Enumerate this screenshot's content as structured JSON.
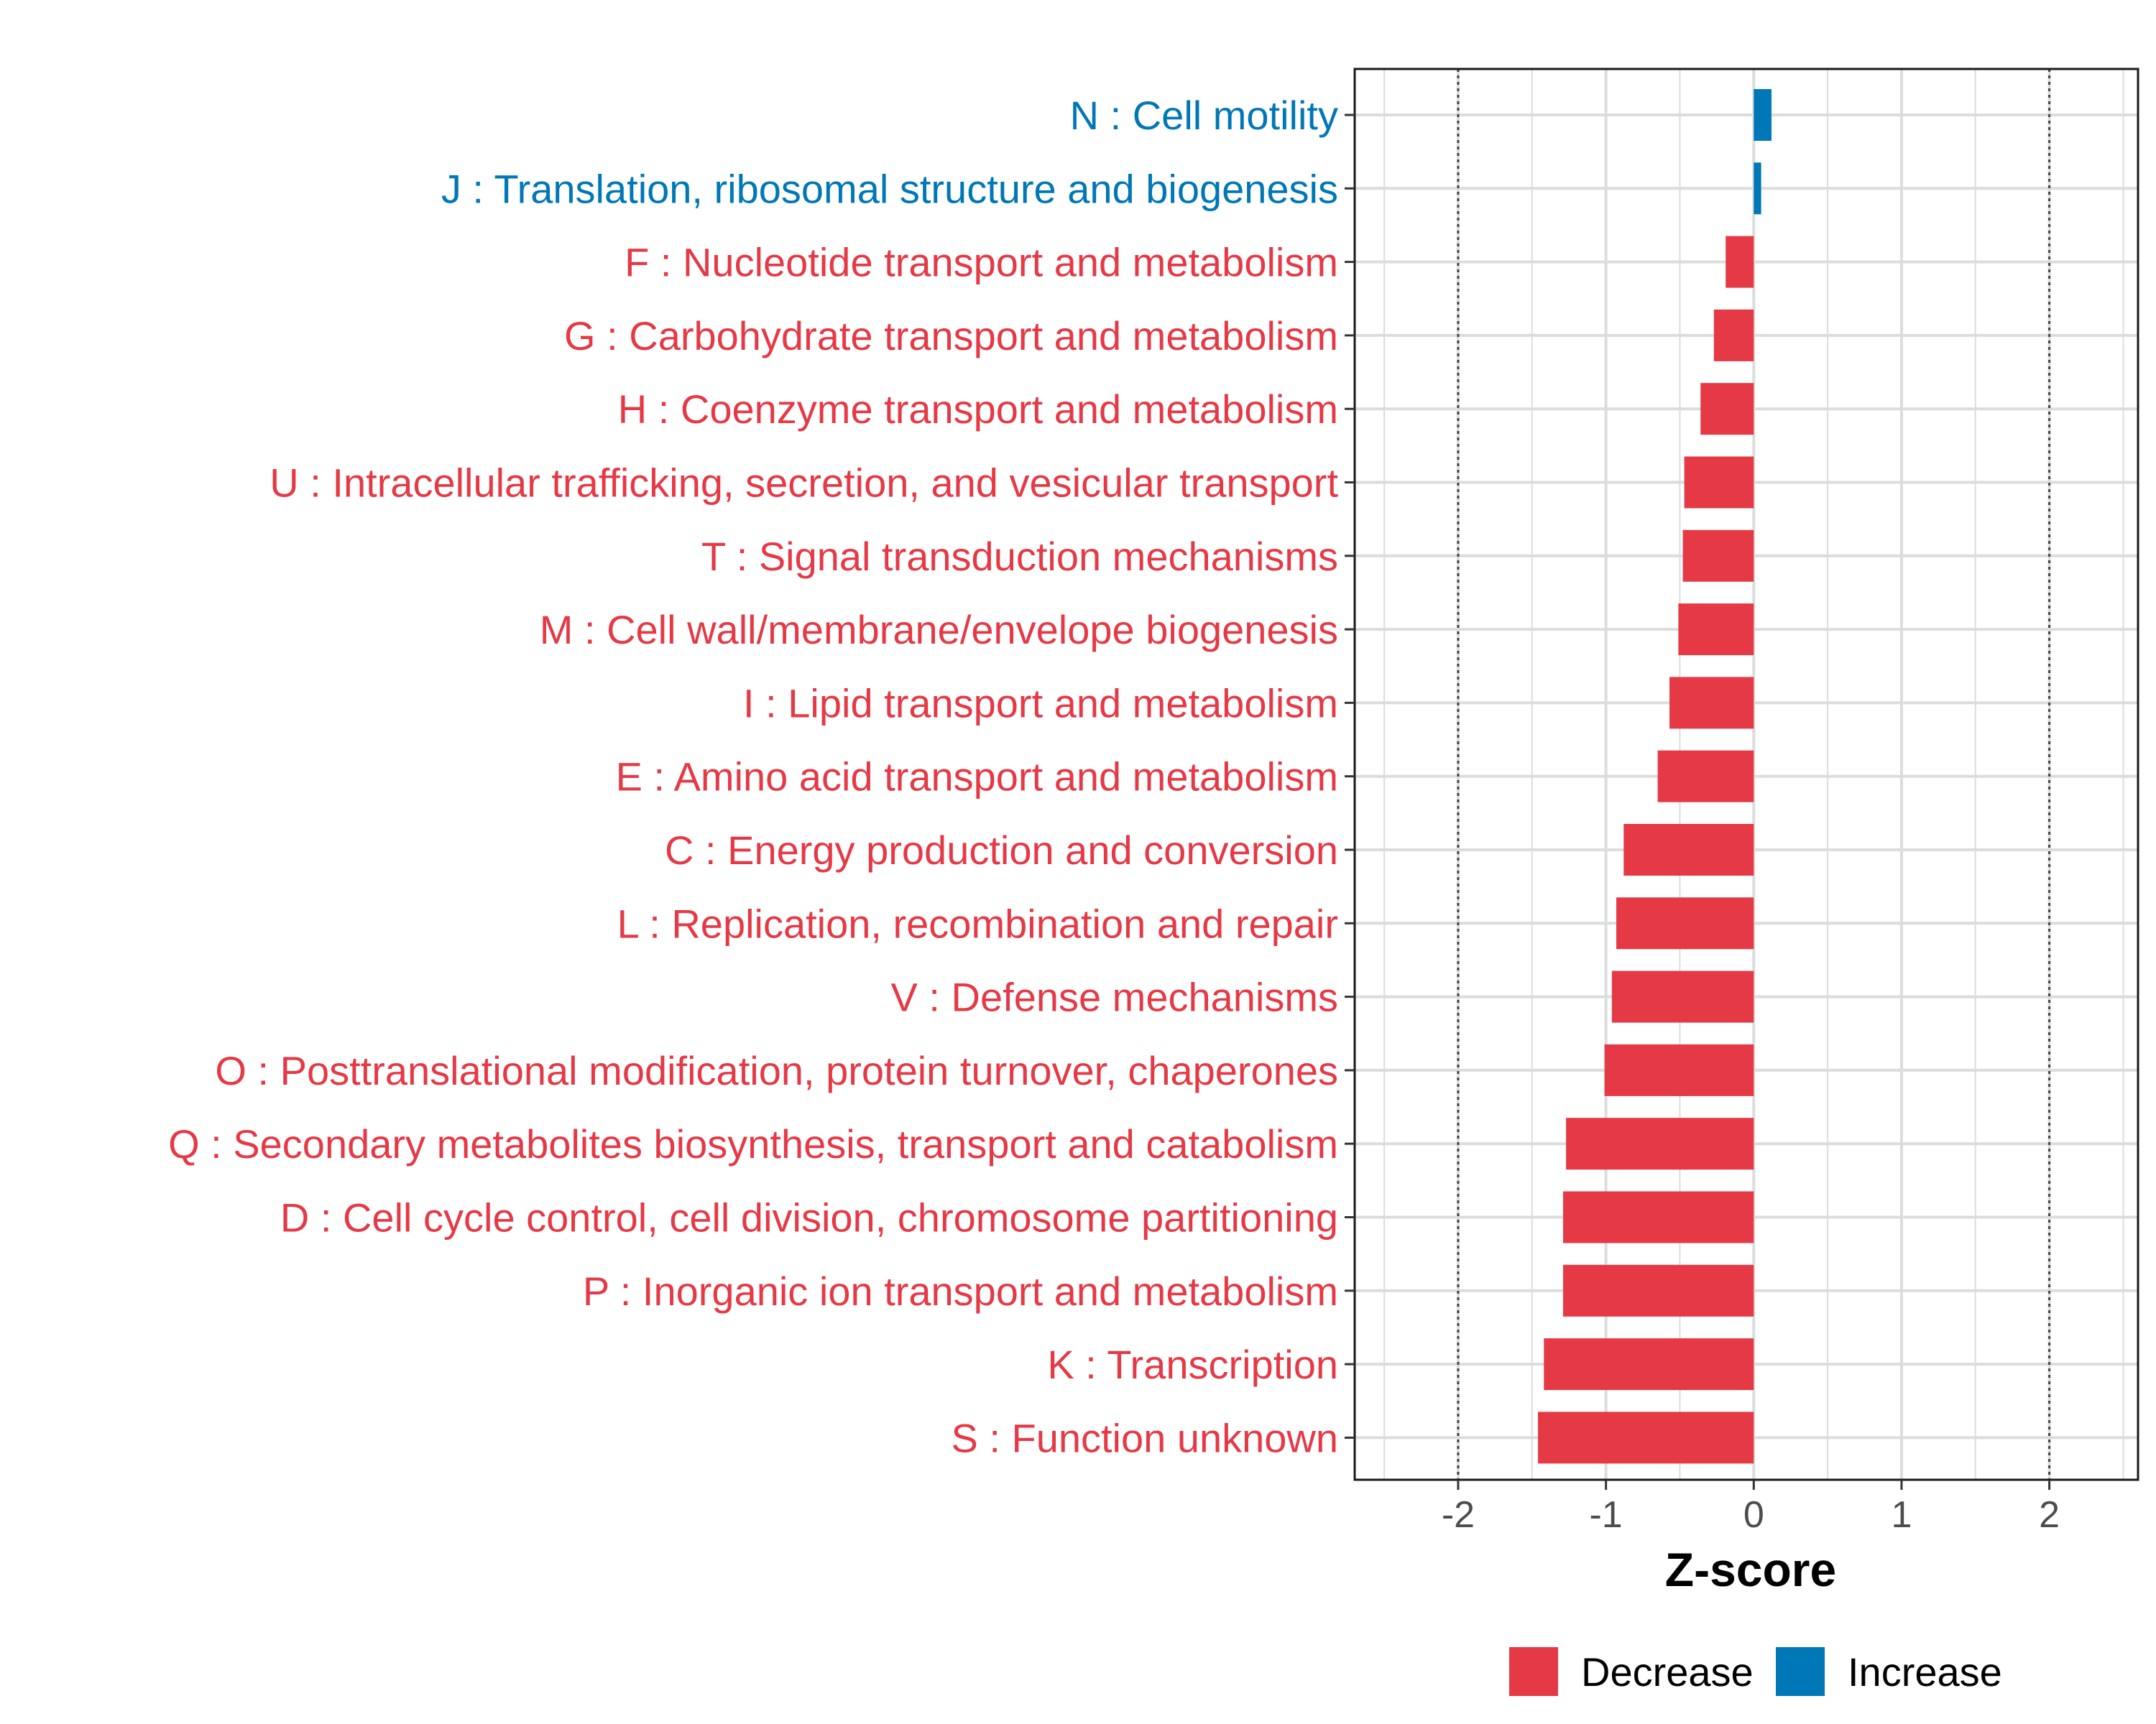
{
  "chart_data": {
    "type": "bar",
    "orientation": "horizontal",
    "xlabel": "Z-score",
    "xlim": [
      -2.7,
      2.6
    ],
    "xticks": [
      -2,
      -1,
      0,
      1,
      2
    ],
    "xtick_labels": [
      "-2",
      "-1",
      "0",
      "1",
      "2"
    ],
    "reference_lines": [
      -2,
      2
    ],
    "grid": true,
    "legend_position": "bottom",
    "legend": [
      {
        "name": "Decrease",
        "color": "#E63946"
      },
      {
        "name": "Increase",
        "color": "#0077B6"
      }
    ],
    "bars": [
      {
        "label": "N : Cell motility",
        "value": 0.12,
        "group": "Increase"
      },
      {
        "label": "J : Translation, ribosomal structure and biogenesis",
        "value": 0.05,
        "group": "Increase"
      },
      {
        "label": "F : Nucleotide transport and metabolism",
        "value": -0.19,
        "group": "Decrease"
      },
      {
        "label": "G : Carbohydrate transport and metabolism",
        "value": -0.27,
        "group": "Decrease"
      },
      {
        "label": "H : Coenzyme transport and metabolism",
        "value": -0.36,
        "group": "Decrease"
      },
      {
        "label": "U : Intracellular trafficking, secretion, and vesicular transport",
        "value": -0.47,
        "group": "Decrease"
      },
      {
        "label": "T : Signal transduction mechanisms",
        "value": -0.48,
        "group": "Decrease"
      },
      {
        "label": "M : Cell wall/membrane/envelope biogenesis",
        "value": -0.51,
        "group": "Decrease"
      },
      {
        "label": "I : Lipid transport and metabolism",
        "value": -0.57,
        "group": "Decrease"
      },
      {
        "label": "E : Amino acid transport and metabolism",
        "value": -0.65,
        "group": "Decrease"
      },
      {
        "label": "C : Energy production and conversion",
        "value": -0.88,
        "group": "Decrease"
      },
      {
        "label": "L : Replication, recombination and repair",
        "value": -0.93,
        "group": "Decrease"
      },
      {
        "label": "V : Defense mechanisms",
        "value": -0.96,
        "group": "Decrease"
      },
      {
        "label": "O : Posttranslational modification, protein turnover, chaperones",
        "value": -1.01,
        "group": "Decrease"
      },
      {
        "label": "Q : Secondary metabolites biosynthesis, transport and catabolism",
        "value": -1.27,
        "group": "Decrease"
      },
      {
        "label": "D : Cell cycle control, cell division, chromosome partitioning",
        "value": -1.29,
        "group": "Decrease"
      },
      {
        "label": "P : Inorganic ion transport and metabolism",
        "value": -1.29,
        "group": "Decrease"
      },
      {
        "label": "K : Transcription",
        "value": -1.42,
        "group": "Decrease"
      },
      {
        "label": "S : Function unknown",
        "value": -1.46,
        "group": "Decrease"
      }
    ]
  }
}
